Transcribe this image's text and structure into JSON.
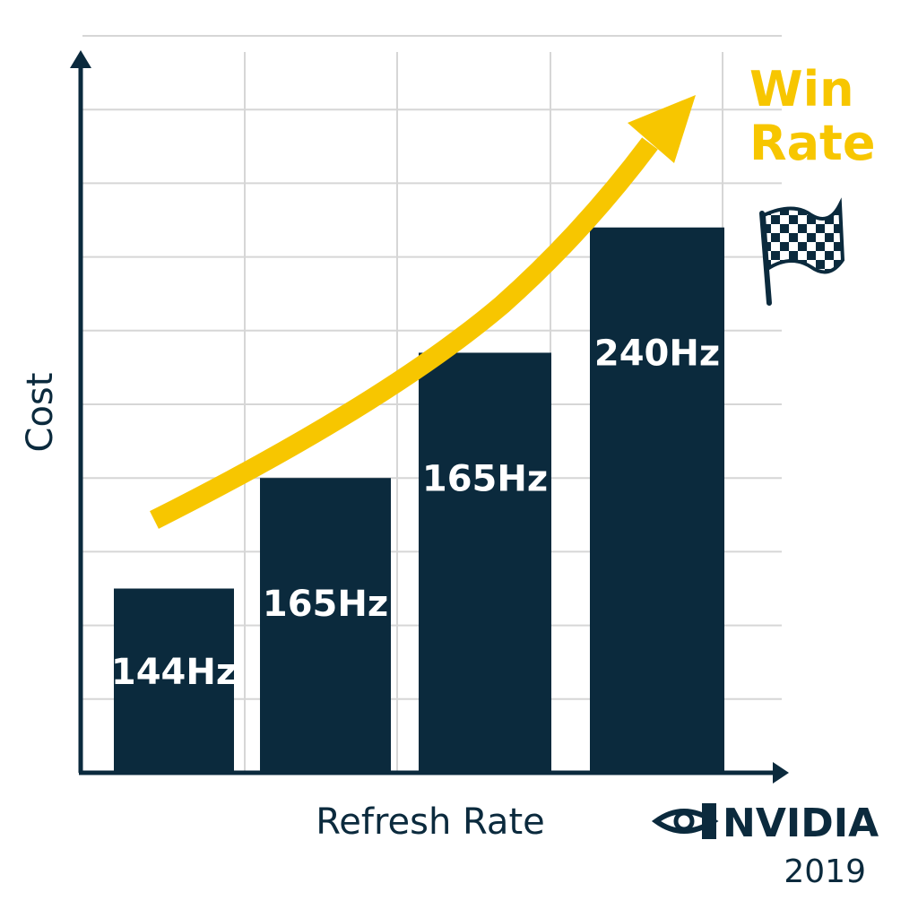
{
  "chart_data": {
    "type": "bar",
    "categories": [
      "144Hz",
      "165Hz",
      "165Hz",
      "240Hz"
    ],
    "values": [
      2.5,
      4.0,
      5.7,
      7.4
    ],
    "bar_labels": [
      "144Hz",
      "165Hz",
      "165Hz",
      "240Hz"
    ],
    "xlabel": "Refresh Rate",
    "ylabel": "Cost",
    "ylim": [
      0,
      10
    ],
    "grid": true,
    "bar_color": "#0b2a3d",
    "trend_annotation": {
      "label_lines": [
        "Win",
        "Rate"
      ],
      "color": "#f7c600",
      "direction": "increasing"
    },
    "flag_icon": "checkered-flag-icon"
  },
  "branding": {
    "logo_icon": "nvidia-eye-icon",
    "brand_name": "NVIDIA",
    "year": "2019"
  },
  "colors": {
    "background": "#ffffff",
    "axis": "#0b2a3d",
    "grid": "#d6d6d6",
    "accent": "#f7c600"
  }
}
